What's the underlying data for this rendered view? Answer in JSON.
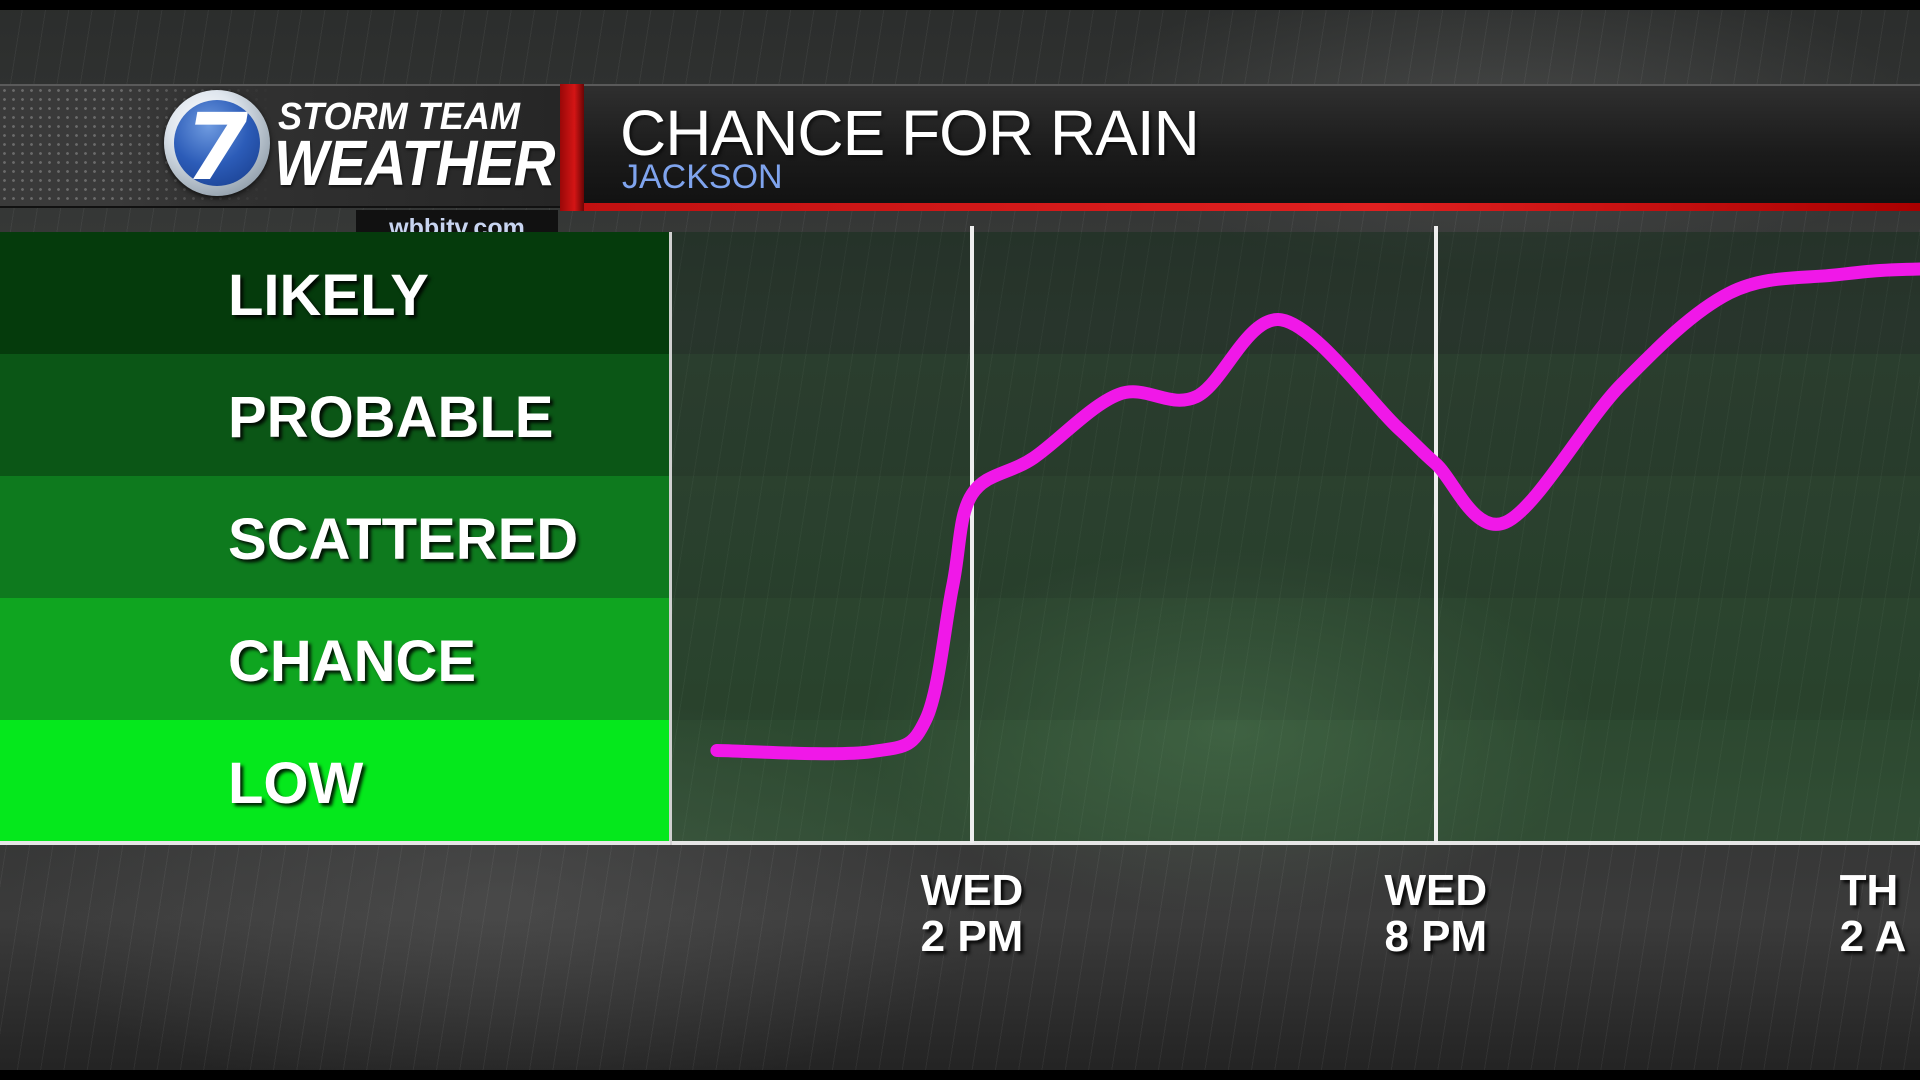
{
  "header": {
    "logo_number": "7",
    "brand_line1": "STORM TEAM",
    "brand_line2": "WEATHER",
    "url": "wbbjtv.com",
    "title": "CHANCE FOR RAIN",
    "subtitle": "JACKSON"
  },
  "colors": {
    "line": "#f018e8",
    "band_likely": "#053b0c",
    "band_probable": "#0b5616",
    "band_scattered": "#0e7a1e",
    "band_chance": "#0fa520",
    "band_low": "#05e81c",
    "header_red": "#d41515",
    "subtitle_blue": "#7fa4ee"
  },
  "chart_data": {
    "type": "line",
    "title": "CHANCE FOR RAIN",
    "subtitle": "JACKSON",
    "y_categories": [
      "LOW",
      "CHANCE",
      "SCATTERED",
      "PROBABLE",
      "LIKELY"
    ],
    "ylim": [
      0,
      5
    ],
    "xlim": [
      -3.3,
      15.5
    ],
    "x_ticks": [
      {
        "x": 0,
        "line1": "WED",
        "line2": "2 PM"
      },
      {
        "x": 6,
        "line1": "WED",
        "line2": "8 PM"
      },
      {
        "x": 12,
        "line1": "TH",
        "line2": "2 A"
      }
    ],
    "grid_vertical": [
      0,
      6
    ],
    "series": [
      {
        "values": [
          {
            "x": -3.3,
            "y": 0.75
          },
          {
            "x": -1.3,
            "y": 0.74
          },
          {
            "x": -0.6,
            "y": 1.0
          },
          {
            "x": -0.25,
            "y": 2.1
          },
          {
            "x": 0.0,
            "y": 2.85
          },
          {
            "x": 0.8,
            "y": 3.15
          },
          {
            "x": 1.9,
            "y": 3.67
          },
          {
            "x": 2.9,
            "y": 3.65
          },
          {
            "x": 4.0,
            "y": 4.28
          },
          {
            "x": 5.5,
            "y": 3.4
          },
          {
            "x": 6.0,
            "y": 3.1
          },
          {
            "x": 6.9,
            "y": 2.62
          },
          {
            "x": 8.4,
            "y": 3.75
          },
          {
            "x": 9.8,
            "y": 4.5
          },
          {
            "x": 11.2,
            "y": 4.65
          },
          {
            "x": 12.5,
            "y": 4.7
          },
          {
            "x": 15.5,
            "y": 4.7
          }
        ]
      }
    ]
  }
}
